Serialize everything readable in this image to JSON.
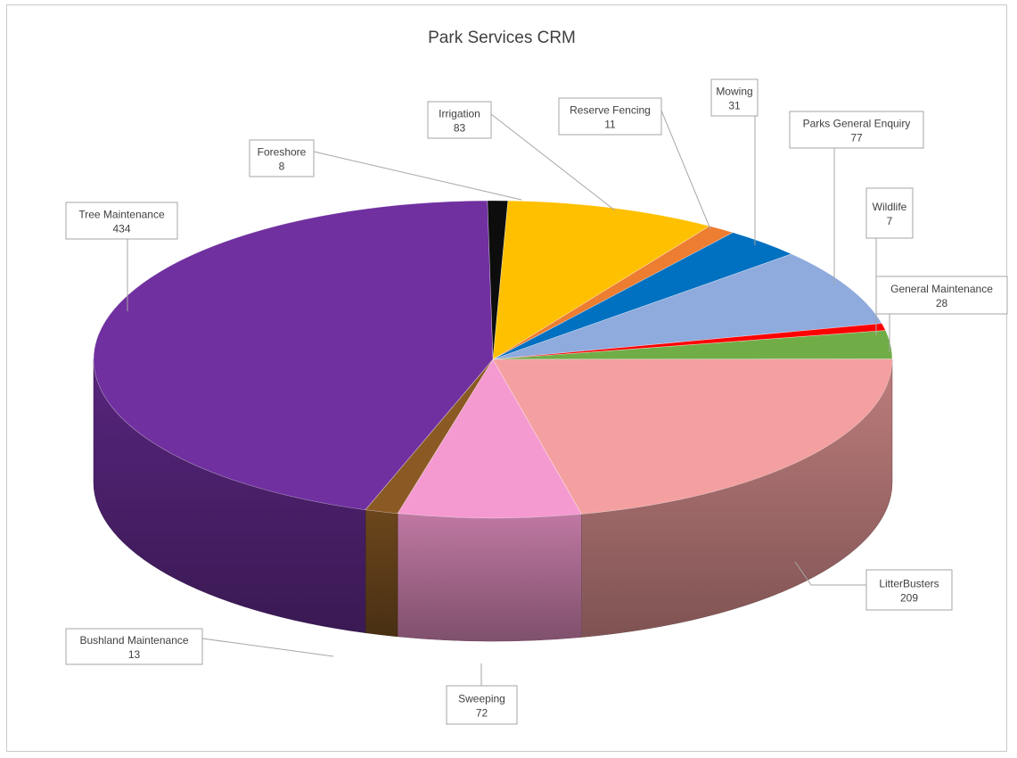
{
  "chart_data": {
    "type": "pie",
    "variant": "3d",
    "title": "Park Services CRM",
    "legend": "none",
    "slices": [
      {
        "name": "Foreshore",
        "value": 8,
        "color": "#0d0d0d"
      },
      {
        "name": "Irrigation",
        "value": 83,
        "color": "#ffc000"
      },
      {
        "name": "Reserve Fencing",
        "value": 11,
        "color": "#ed7d31"
      },
      {
        "name": "Mowing",
        "value": 31,
        "color": "#0070c0"
      },
      {
        "name": "Parks General Enquiry",
        "value": 77,
        "color": "#8faadc"
      },
      {
        "name": "Wildlife",
        "value": 7,
        "color": "#ff0000"
      },
      {
        "name": "General Maintenance",
        "value": 28,
        "color": "#70ad47"
      },
      {
        "name": "LitterBusters",
        "value": 209,
        "color": "#f4a0a0"
      },
      {
        "name": "Sweeping",
        "value": 72,
        "color": "#f59ad0"
      },
      {
        "name": "Bushland Maintenance",
        "value": 13,
        "color": "#8b5a24"
      },
      {
        "name": "Tree Maintenance",
        "value": 434,
        "color": "#7030a0"
      }
    ]
  }
}
